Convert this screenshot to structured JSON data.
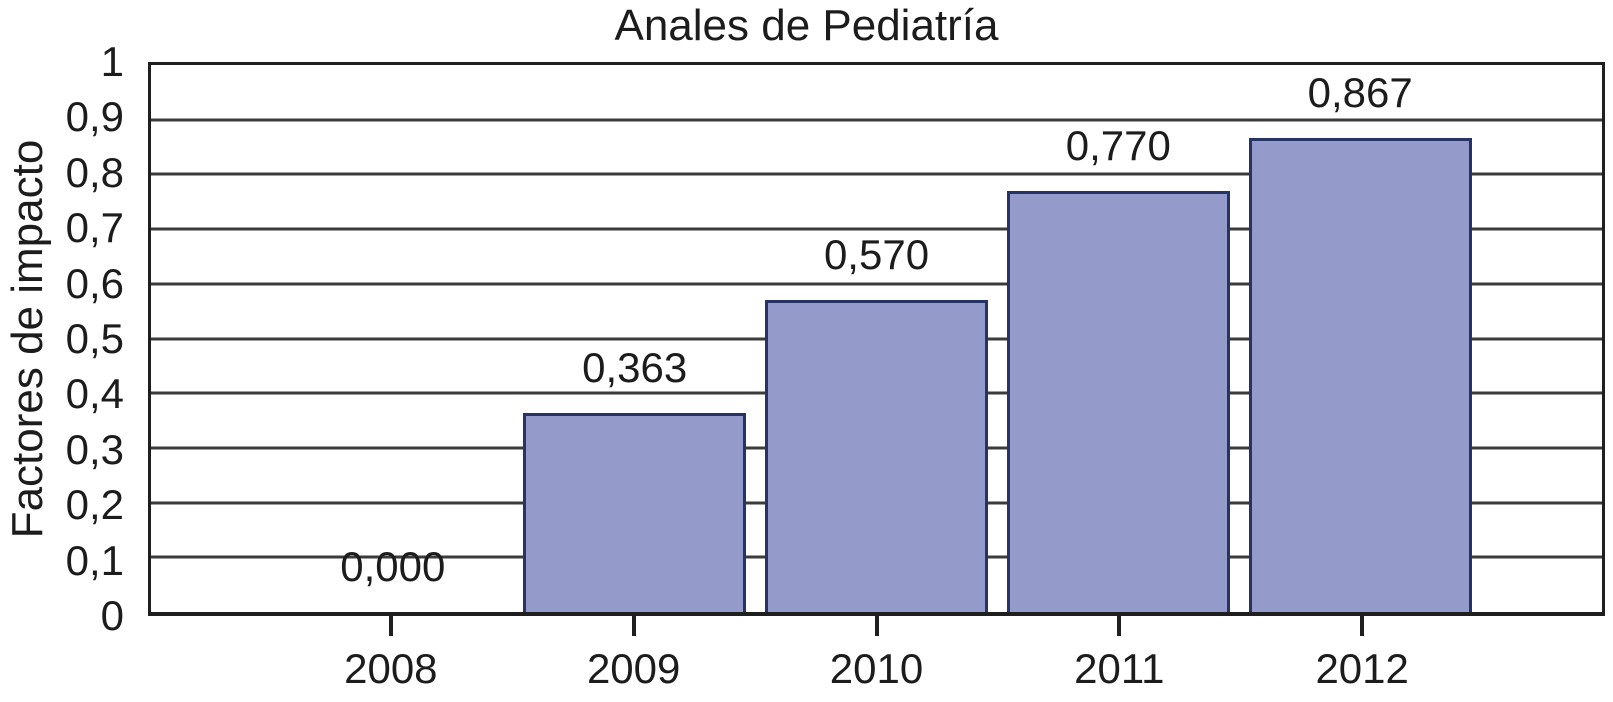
{
  "chart_data": {
    "type": "bar",
    "title": "Anales de Pediatría",
    "ylabel": "Factores de impacto",
    "xlabel": "",
    "categories": [
      "2008",
      "2009",
      "2010",
      "2011",
      "2012"
    ],
    "values": [
      0.0,
      0.363,
      0.57,
      0.77,
      0.867
    ],
    "value_labels": [
      "0,000",
      "0,363",
      "0,570",
      "0,770",
      "0,867"
    ],
    "y_tick_values": [
      0,
      0.1,
      0.2,
      0.3,
      0.4,
      0.5,
      0.6,
      0.7,
      0.8,
      0.9,
      1
    ],
    "y_tick_labels": [
      "0",
      "0,1",
      "0,2",
      "0,3",
      "0,4",
      "0,5",
      "0,6",
      "0,7",
      "0,8",
      "0,9",
      "1"
    ],
    "ylim": [
      0,
      1
    ],
    "grid": "horizontal",
    "legend_position": "none",
    "colors": {
      "bar_fill": "#949BCB",
      "bar_border": "#263364",
      "gridline": "#3B3B3B",
      "plot_border": "#1F1F1F",
      "text": "#1C1C1C",
      "background": "#FFFFFF"
    }
  }
}
